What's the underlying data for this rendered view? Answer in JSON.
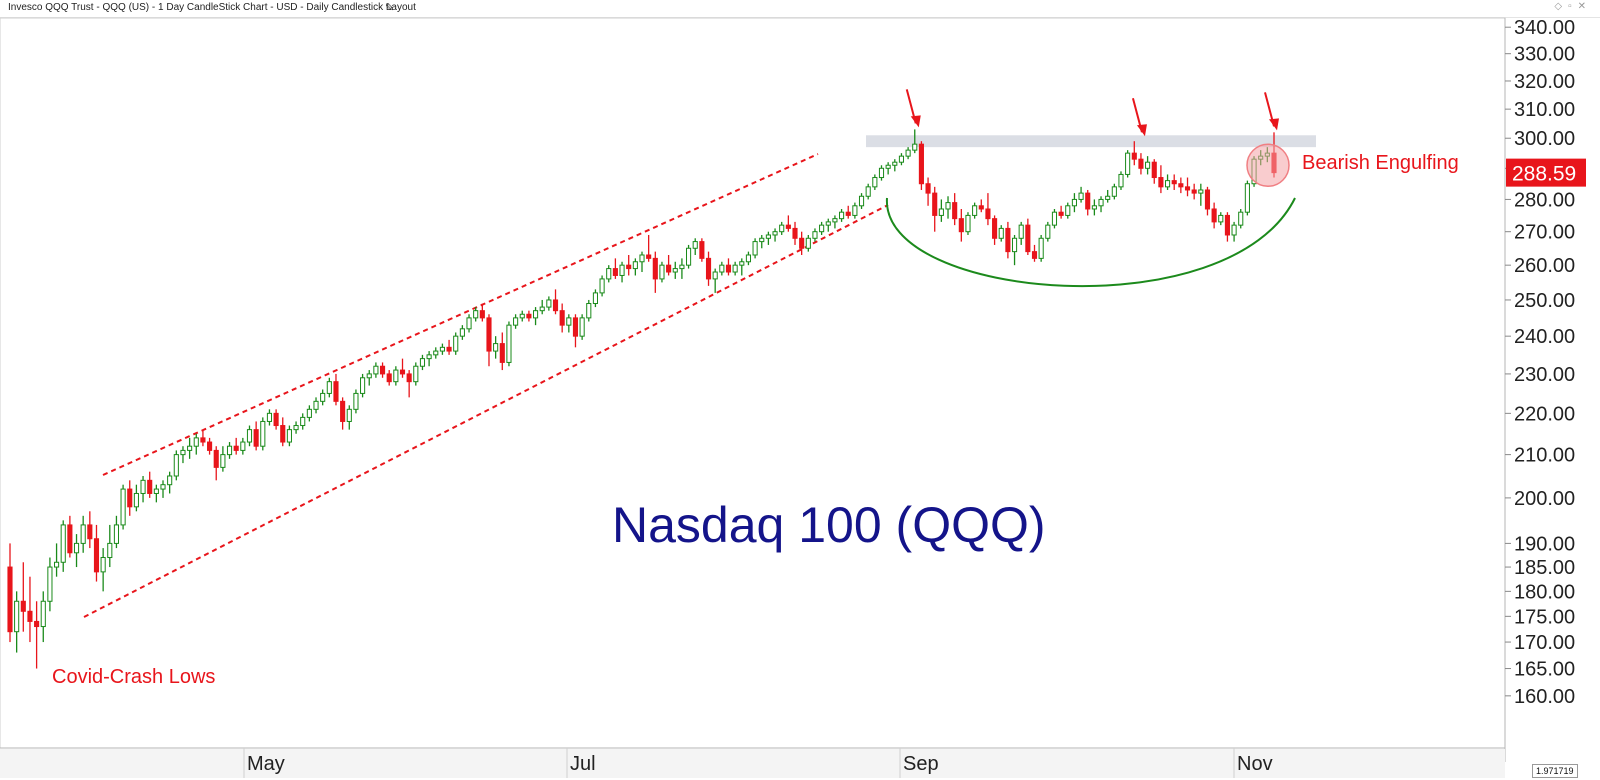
{
  "window": {
    "title": "Invesco QQQ Trust - QQQ (US) - 1 Day CandleStick Chart - USD - Daily Candlestick Layout",
    "axis_readout": "1.971719"
  },
  "colors": {
    "up": "#1a8a1a",
    "down": "#e8151b",
    "annotation": "#e8151b",
    "title": "#14148a",
    "resistance_band": "#d5d8e1",
    "cup": "#1c8a1c",
    "price_tag_bg": "#e8151b"
  },
  "chart_data": {
    "type": "candlestick",
    "title": "Nasdaq 100 (QQQ)",
    "y_scale": "log",
    "ylim": [
      155,
      342
    ],
    "y_ticks": [
      "160.00",
      "165.00",
      "170.00",
      "175.00",
      "180.00",
      "185.00",
      "190.00",
      "200.00",
      "210.00",
      "220.00",
      "230.00",
      "240.00",
      "250.00",
      "260.00",
      "270.00",
      "280.00",
      "290.00",
      "300.00",
      "310.00",
      "320.00",
      "330.00",
      "340.00"
    ],
    "x_labels": [
      "May",
      "Jul",
      "Sep",
      "Nov"
    ],
    "last_price": "288.59",
    "pattern_label": "Bearish Engulfing",
    "low_label": "Covid-Crash Lows",
    "grid": false,
    "resistance": [
      297,
      301
    ],
    "candles": [
      {
        "o": 185,
        "h": 190,
        "l": 170,
        "c": 172
      },
      {
        "o": 172,
        "h": 180,
        "l": 168,
        "c": 178
      },
      {
        "o": 178,
        "h": 186,
        "l": 172,
        "c": 176
      },
      {
        "o": 176,
        "h": 183,
        "l": 170,
        "c": 174
      },
      {
        "o": 174,
        "h": 178,
        "l": 165,
        "c": 173
      },
      {
        "o": 173,
        "h": 180,
        "l": 170,
        "c": 178
      },
      {
        "o": 178,
        "h": 187,
        "l": 176,
        "c": 185
      },
      {
        "o": 185,
        "h": 190,
        "l": 183,
        "c": 186
      },
      {
        "o": 186,
        "h": 195,
        "l": 184,
        "c": 194
      },
      {
        "o": 194,
        "h": 196,
        "l": 187,
        "c": 188
      },
      {
        "o": 188,
        "h": 192,
        "l": 185,
        "c": 190
      },
      {
        "o": 190,
        "h": 196,
        "l": 188,
        "c": 194
      },
      {
        "o": 194,
        "h": 197,
        "l": 189,
        "c": 191
      },
      {
        "o": 191,
        "h": 194,
        "l": 182,
        "c": 184
      },
      {
        "o": 184,
        "h": 189,
        "l": 180,
        "c": 187
      },
      {
        "o": 187,
        "h": 194,
        "l": 185,
        "c": 190
      },
      {
        "o": 190,
        "h": 196,
        "l": 189,
        "c": 194
      },
      {
        "o": 194,
        "h": 203,
        "l": 193,
        "c": 202
      },
      {
        "o": 202,
        "h": 204,
        "l": 196,
        "c": 198
      },
      {
        "o": 198,
        "h": 203,
        "l": 197,
        "c": 201
      },
      {
        "o": 201,
        "h": 205,
        "l": 199,
        "c": 204
      },
      {
        "o": 204,
        "h": 206,
        "l": 200,
        "c": 201
      },
      {
        "o": 201,
        "h": 203,
        "l": 199,
        "c": 202
      },
      {
        "o": 202,
        "h": 204,
        "l": 200,
        "c": 203
      },
      {
        "o": 203,
        "h": 206,
        "l": 201,
        "c": 205
      },
      {
        "o": 205,
        "h": 211,
        "l": 204,
        "c": 210
      },
      {
        "o": 210,
        "h": 212,
        "l": 208,
        "c": 211
      },
      {
        "o": 211,
        "h": 214,
        "l": 209,
        "c": 212
      },
      {
        "o": 212,
        "h": 215,
        "l": 210,
        "c": 214
      },
      {
        "o": 214,
        "h": 216,
        "l": 212,
        "c": 213
      },
      {
        "o": 213,
        "h": 214,
        "l": 210,
        "c": 211
      },
      {
        "o": 211,
        "h": 212,
        "l": 204,
        "c": 207
      },
      {
        "o": 207,
        "h": 212,
        "l": 206,
        "c": 210
      },
      {
        "o": 210,
        "h": 213,
        "l": 209,
        "c": 212
      },
      {
        "o": 212,
        "h": 214,
        "l": 210,
        "c": 211
      },
      {
        "o": 211,
        "h": 214,
        "l": 210,
        "c": 213
      },
      {
        "o": 213,
        "h": 217,
        "l": 212,
        "c": 216
      },
      {
        "o": 216,
        "h": 218,
        "l": 211,
        "c": 212
      },
      {
        "o": 212,
        "h": 219,
        "l": 211,
        "c": 218
      },
      {
        "o": 218,
        "h": 221,
        "l": 217,
        "c": 220
      },
      {
        "o": 220,
        "h": 221,
        "l": 216,
        "c": 217
      },
      {
        "o": 217,
        "h": 219,
        "l": 212,
        "c": 213
      },
      {
        "o": 213,
        "h": 217,
        "l": 212,
        "c": 216
      },
      {
        "o": 216,
        "h": 218,
        "l": 215,
        "c": 217
      },
      {
        "o": 217,
        "h": 220,
        "l": 216,
        "c": 219
      },
      {
        "o": 219,
        "h": 222,
        "l": 218,
        "c": 221
      },
      {
        "o": 221,
        "h": 224,
        "l": 220,
        "c": 223
      },
      {
        "o": 223,
        "h": 226,
        "l": 222,
        "c": 225
      },
      {
        "o": 225,
        "h": 229,
        "l": 224,
        "c": 228
      },
      {
        "o": 228,
        "h": 230,
        "l": 222,
        "c": 223
      },
      {
        "o": 223,
        "h": 224,
        "l": 216,
        "c": 218
      },
      {
        "o": 218,
        "h": 222,
        "l": 216,
        "c": 221
      },
      {
        "o": 221,
        "h": 226,
        "l": 220,
        "c": 225
      },
      {
        "o": 225,
        "h": 230,
        "l": 224,
        "c": 229
      },
      {
        "o": 229,
        "h": 231,
        "l": 227,
        "c": 230
      },
      {
        "o": 230,
        "h": 233,
        "l": 229,
        "c": 232
      },
      {
        "o": 232,
        "h": 233,
        "l": 229,
        "c": 230
      },
      {
        "o": 230,
        "h": 231,
        "l": 227,
        "c": 228
      },
      {
        "o": 228,
        "h": 232,
        "l": 227,
        "c": 231
      },
      {
        "o": 231,
        "h": 234,
        "l": 229,
        "c": 230
      },
      {
        "o": 230,
        "h": 231,
        "l": 224,
        "c": 228
      },
      {
        "o": 228,
        "h": 233,
        "l": 227,
        "c": 232
      },
      {
        "o": 232,
        "h": 235,
        "l": 231,
        "c": 234
      },
      {
        "o": 234,
        "h": 236,
        "l": 232,
        "c": 235
      },
      {
        "o": 235,
        "h": 237,
        "l": 234,
        "c": 236
      },
      {
        "o": 236,
        "h": 238,
        "l": 235,
        "c": 237
      },
      {
        "o": 237,
        "h": 239,
        "l": 235,
        "c": 236
      },
      {
        "o": 236,
        "h": 241,
        "l": 235,
        "c": 240
      },
      {
        "o": 240,
        "h": 243,
        "l": 239,
        "c": 242
      },
      {
        "o": 242,
        "h": 246,
        "l": 241,
        "c": 245
      },
      {
        "o": 245,
        "h": 248,
        "l": 244,
        "c": 247
      },
      {
        "o": 247,
        "h": 249,
        "l": 244,
        "c": 245
      },
      {
        "o": 245,
        "h": 246,
        "l": 232,
        "c": 236
      },
      {
        "o": 236,
        "h": 240,
        "l": 234,
        "c": 238
      },
      {
        "o": 238,
        "h": 241,
        "l": 231,
        "c": 233
      },
      {
        "o": 233,
        "h": 244,
        "l": 232,
        "c": 243
      },
      {
        "o": 243,
        "h": 246,
        "l": 242,
        "c": 245
      },
      {
        "o": 245,
        "h": 247,
        "l": 244,
        "c": 246
      },
      {
        "o": 246,
        "h": 247,
        "l": 244,
        "c": 245
      },
      {
        "o": 245,
        "h": 248,
        "l": 243,
        "c": 247
      },
      {
        "o": 247,
        "h": 250,
        "l": 246,
        "c": 248
      },
      {
        "o": 248,
        "h": 251,
        "l": 247,
        "c": 250
      },
      {
        "o": 250,
        "h": 253,
        "l": 246,
        "c": 247
      },
      {
        "o": 247,
        "h": 249,
        "l": 241,
        "c": 243
      },
      {
        "o": 243,
        "h": 246,
        "l": 241,
        "c": 245
      },
      {
        "o": 245,
        "h": 246,
        "l": 237,
        "c": 240
      },
      {
        "o": 240,
        "h": 246,
        "l": 239,
        "c": 245
      },
      {
        "o": 245,
        "h": 250,
        "l": 244,
        "c": 249
      },
      {
        "o": 249,
        "h": 253,
        "l": 248,
        "c": 252
      },
      {
        "o": 252,
        "h": 257,
        "l": 251,
        "c": 256
      },
      {
        "o": 256,
        "h": 260,
        "l": 255,
        "c": 259
      },
      {
        "o": 259,
        "h": 262,
        "l": 256,
        "c": 257
      },
      {
        "o": 257,
        "h": 261,
        "l": 255,
        "c": 260
      },
      {
        "o": 260,
        "h": 263,
        "l": 257,
        "c": 259
      },
      {
        "o": 259,
        "h": 262,
        "l": 257,
        "c": 261
      },
      {
        "o": 261,
        "h": 264,
        "l": 258,
        "c": 263
      },
      {
        "o": 263,
        "h": 269,
        "l": 261,
        "c": 262
      },
      {
        "o": 262,
        "h": 264,
        "l": 252,
        "c": 256
      },
      {
        "o": 256,
        "h": 261,
        "l": 255,
        "c": 260
      },
      {
        "o": 260,
        "h": 263,
        "l": 257,
        "c": 258
      },
      {
        "o": 258,
        "h": 261,
        "l": 256,
        "c": 259
      },
      {
        "o": 259,
        "h": 262,
        "l": 256,
        "c": 260
      },
      {
        "o": 260,
        "h": 266,
        "l": 259,
        "c": 265
      },
      {
        "o": 265,
        "h": 268,
        "l": 263,
        "c": 267
      },
      {
        "o": 267,
        "h": 268,
        "l": 261,
        "c": 262
      },
      {
        "o": 262,
        "h": 264,
        "l": 254,
        "c": 256
      },
      {
        "o": 256,
        "h": 259,
        "l": 252,
        "c": 258
      },
      {
        "o": 258,
        "h": 261,
        "l": 257,
        "c": 260
      },
      {
        "o": 260,
        "h": 262,
        "l": 257,
        "c": 258
      },
      {
        "o": 258,
        "h": 261,
        "l": 257,
        "c": 260
      },
      {
        "o": 260,
        "h": 262,
        "l": 257,
        "c": 261
      },
      {
        "o": 261,
        "h": 264,
        "l": 260,
        "c": 263
      },
      {
        "o": 263,
        "h": 268,
        "l": 262,
        "c": 267
      },
      {
        "o": 267,
        "h": 269,
        "l": 265,
        "c": 268
      },
      {
        "o": 268,
        "h": 270,
        "l": 266,
        "c": 269
      },
      {
        "o": 269,
        "h": 271,
        "l": 267,
        "c": 270
      },
      {
        "o": 270,
        "h": 273,
        "l": 269,
        "c": 272
      },
      {
        "o": 272,
        "h": 275,
        "l": 270,
        "c": 271
      },
      {
        "o": 271,
        "h": 273,
        "l": 266,
        "c": 268
      },
      {
        "o": 268,
        "h": 270,
        "l": 263,
        "c": 265
      },
      {
        "o": 265,
        "h": 269,
        "l": 264,
        "c": 268
      },
      {
        "o": 268,
        "h": 271,
        "l": 267,
        "c": 270
      },
      {
        "o": 270,
        "h": 273,
        "l": 269,
        "c": 272
      },
      {
        "o": 272,
        "h": 274,
        "l": 270,
        "c": 273
      },
      {
        "o": 273,
        "h": 275,
        "l": 271,
        "c": 274
      },
      {
        "o": 274,
        "h": 277,
        "l": 273,
        "c": 276
      },
      {
        "o": 276,
        "h": 278,
        "l": 274,
        "c": 275
      },
      {
        "o": 275,
        "h": 279,
        "l": 274,
        "c": 278
      },
      {
        "o": 278,
        "h": 282,
        "l": 277,
        "c": 281
      },
      {
        "o": 281,
        "h": 285,
        "l": 280,
        "c": 284
      },
      {
        "o": 284,
        "h": 288,
        "l": 283,
        "c": 287
      },
      {
        "o": 287,
        "h": 291,
        "l": 286,
        "c": 290
      },
      {
        "o": 290,
        "h": 292,
        "l": 288,
        "c": 291
      },
      {
        "o": 291,
        "h": 293,
        "l": 289,
        "c": 292
      },
      {
        "o": 292,
        "h": 295,
        "l": 291,
        "c": 294
      },
      {
        "o": 294,
        "h": 297,
        "l": 293,
        "c": 296
      },
      {
        "o": 296,
        "h": 303,
        "l": 295,
        "c": 298
      },
      {
        "o": 298,
        "h": 299,
        "l": 283,
        "c": 285
      },
      {
        "o": 285,
        "h": 287,
        "l": 278,
        "c": 282
      },
      {
        "o": 282,
        "h": 284,
        "l": 270,
        "c": 275
      },
      {
        "o": 275,
        "h": 280,
        "l": 273,
        "c": 277
      },
      {
        "o": 277,
        "h": 281,
        "l": 274,
        "c": 279
      },
      {
        "o": 279,
        "h": 282,
        "l": 272,
        "c": 274
      },
      {
        "o": 274,
        "h": 277,
        "l": 267,
        "c": 270
      },
      {
        "o": 270,
        "h": 276,
        "l": 269,
        "c": 275
      },
      {
        "o": 275,
        "h": 279,
        "l": 274,
        "c": 278
      },
      {
        "o": 278,
        "h": 280,
        "l": 276,
        "c": 277
      },
      {
        "o": 277,
        "h": 282,
        "l": 272,
        "c": 274
      },
      {
        "o": 274,
        "h": 275,
        "l": 266,
        "c": 268
      },
      {
        "o": 268,
        "h": 272,
        "l": 267,
        "c": 271
      },
      {
        "o": 271,
        "h": 273,
        "l": 262,
        "c": 264
      },
      {
        "o": 264,
        "h": 269,
        "l": 260,
        "c": 268
      },
      {
        "o": 268,
        "h": 273,
        "l": 266,
        "c": 272
      },
      {
        "o": 272,
        "h": 274,
        "l": 263,
        "c": 264
      },
      {
        "o": 264,
        "h": 266,
        "l": 261,
        "c": 262
      },
      {
        "o": 262,
        "h": 269,
        "l": 261,
        "c": 268
      },
      {
        "o": 268,
        "h": 273,
        "l": 267,
        "c": 272
      },
      {
        "o": 272,
        "h": 277,
        "l": 271,
        "c": 276
      },
      {
        "o": 276,
        "h": 278,
        "l": 274,
        "c": 275
      },
      {
        "o": 275,
        "h": 279,
        "l": 274,
        "c": 278
      },
      {
        "o": 278,
        "h": 282,
        "l": 276,
        "c": 280
      },
      {
        "o": 280,
        "h": 284,
        "l": 279,
        "c": 282
      },
      {
        "o": 282,
        "h": 283,
        "l": 275,
        "c": 277
      },
      {
        "o": 277,
        "h": 280,
        "l": 275,
        "c": 278
      },
      {
        "o": 278,
        "h": 281,
        "l": 276,
        "c": 280
      },
      {
        "o": 280,
        "h": 283,
        "l": 279,
        "c": 281
      },
      {
        "o": 281,
        "h": 285,
        "l": 280,
        "c": 284
      },
      {
        "o": 284,
        "h": 289,
        "l": 283,
        "c": 288
      },
      {
        "o": 288,
        "h": 296,
        "l": 287,
        "c": 295
      },
      {
        "o": 295,
        "h": 299,
        "l": 291,
        "c": 293
      },
      {
        "o": 293,
        "h": 295,
        "l": 288,
        "c": 290
      },
      {
        "o": 290,
        "h": 294,
        "l": 288,
        "c": 292
      },
      {
        "o": 292,
        "h": 293,
        "l": 285,
        "c": 287
      },
      {
        "o": 287,
        "h": 291,
        "l": 282,
        "c": 284
      },
      {
        "o": 284,
        "h": 288,
        "l": 283,
        "c": 286
      },
      {
        "o": 286,
        "h": 288,
        "l": 283,
        "c": 285
      },
      {
        "o": 285,
        "h": 287,
        "l": 282,
        "c": 284
      },
      {
        "o": 284,
        "h": 287,
        "l": 281,
        "c": 283
      },
      {
        "o": 283,
        "h": 285,
        "l": 280,
        "c": 282
      },
      {
        "o": 282,
        "h": 285,
        "l": 278,
        "c": 283
      },
      {
        "o": 283,
        "h": 284,
        "l": 275,
        "c": 277
      },
      {
        "o": 277,
        "h": 279,
        "l": 271,
        "c": 273
      },
      {
        "o": 273,
        "h": 276,
        "l": 272,
        "c": 275
      },
      {
        "o": 275,
        "h": 276,
        "l": 267,
        "c": 269
      },
      {
        "o": 269,
        "h": 273,
        "l": 267,
        "c": 272
      },
      {
        "o": 272,
        "h": 277,
        "l": 271,
        "c": 276
      },
      {
        "o": 276,
        "h": 286,
        "l": 275,
        "c": 285
      },
      {
        "o": 285,
        "h": 294,
        "l": 284,
        "c": 293
      },
      {
        "o": 293,
        "h": 296,
        "l": 291,
        "c": 294
      },
      {
        "o": 294,
        "h": 297,
        "l": 292,
        "c": 295
      },
      {
        "o": 295,
        "h": 302,
        "l": 287,
        "c": 288.59
      }
    ]
  }
}
